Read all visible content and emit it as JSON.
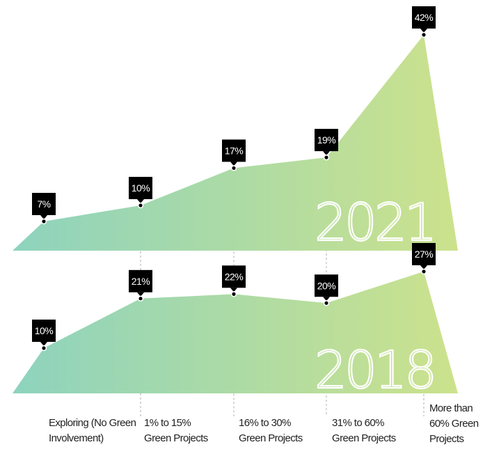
{
  "colors": {
    "gradient_start": "#8dd3be",
    "gradient_end": "#cce28c",
    "label_box": "#000000",
    "label_text": "#ffffff",
    "guide_line": "#999999",
    "category_text": "#222222"
  },
  "chart_data": {
    "type": "area",
    "categories": [
      "Exploring (No Green Involvement)",
      "1% to 15% Green Projects",
      "16% to 30% Green Projects",
      "31% to 60% Green Projects",
      "More than 60% Green Projects"
    ],
    "category_label_lines": [
      [
        "Exploring (No Green",
        "Involvement)"
      ],
      [
        "1% to 15%",
        "Green Projects"
      ],
      [
        "16% to 30%",
        "Green Projects"
      ],
      [
        "31% to 60%",
        "Green Projects"
      ],
      [
        "More than",
        "60% Green",
        "Projects"
      ]
    ],
    "series": [
      {
        "name": "2021",
        "values": [
          7,
          10,
          17,
          19,
          42
        ],
        "labels": [
          "7%",
          "10%",
          "17%",
          "19%",
          "42%"
        ]
      },
      {
        "name": "2018",
        "values": [
          10,
          21,
          22,
          20,
          27
        ],
        "labels": [
          "10%",
          "21%",
          "22%",
          "20%",
          "27%"
        ]
      }
    ],
    "unit": "%"
  }
}
